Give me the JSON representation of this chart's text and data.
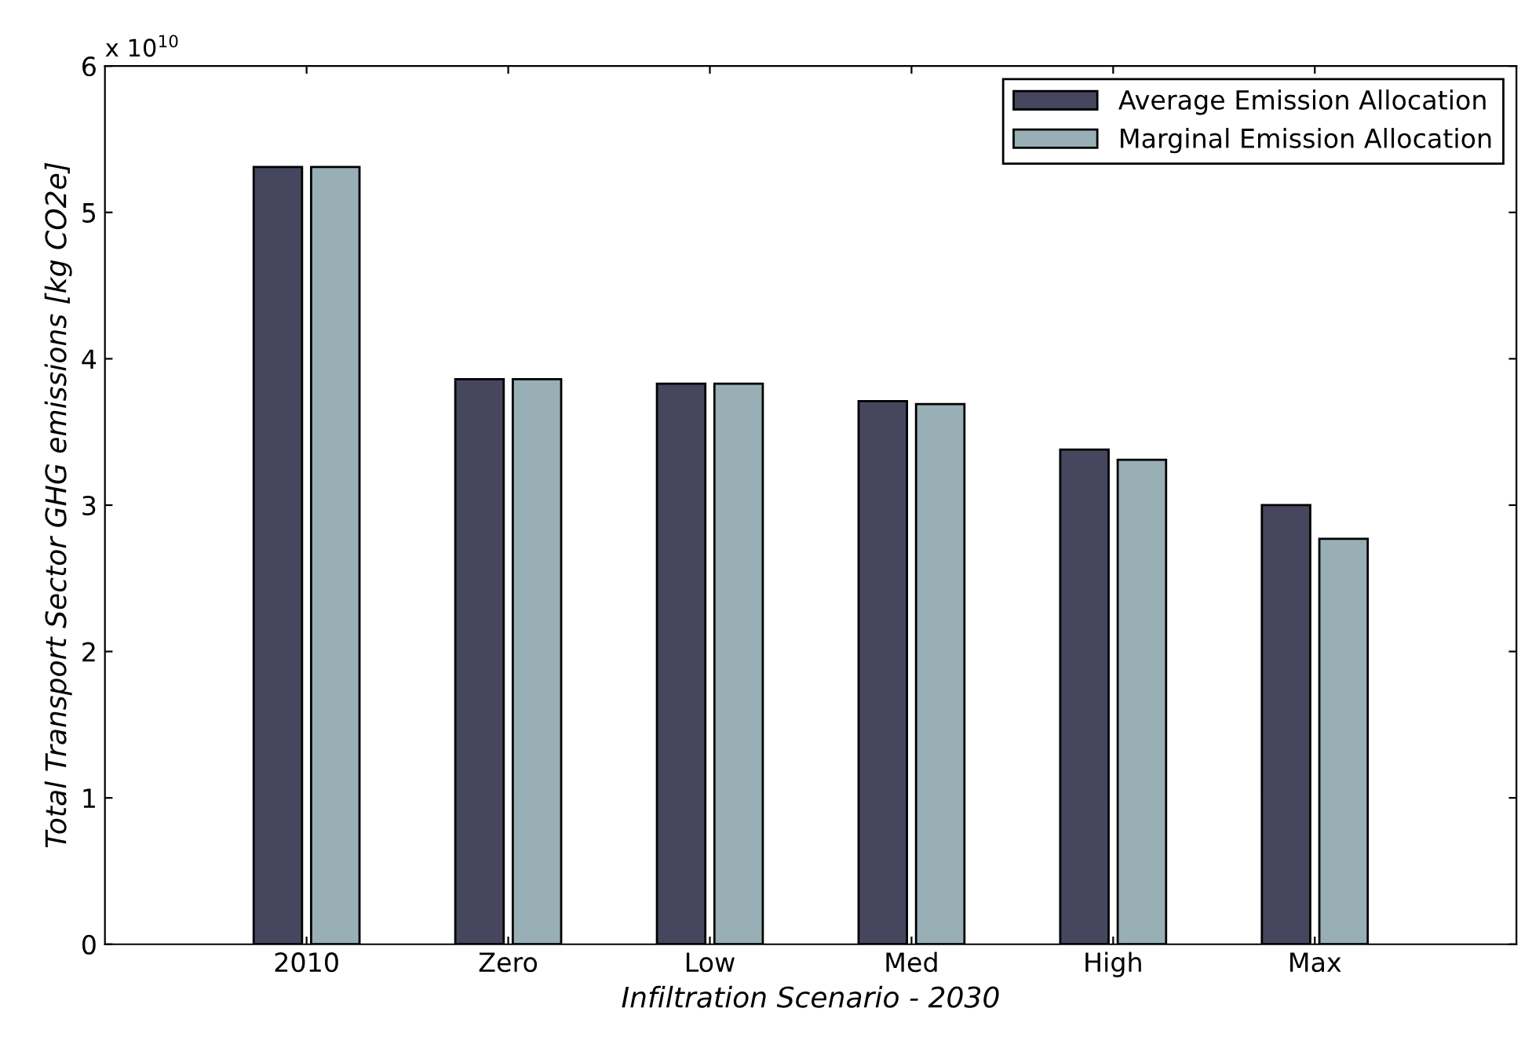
{
  "chart_data": {
    "type": "bar",
    "xlabel": "Infiltration Scenario - 2030",
    "ylabel": "Total Transport Sector GHG emissions [kg CO2e]",
    "categories": [
      "2010",
      "Zero",
      "Low",
      "Med",
      "High",
      "Max"
    ],
    "series": [
      {
        "name": "Average Emission Allocation",
        "color": "#46465f",
        "values": [
          5.31,
          3.86,
          3.83,
          3.71,
          3.38,
          3.0
        ]
      },
      {
        "name": "Marginal Emission Allocation",
        "color": "#97afb5",
        "values": [
          5.31,
          3.86,
          3.83,
          3.69,
          3.31,
          2.77
        ]
      }
    ],
    "ylim": [
      0,
      6
    ],
    "yticks": [
      0,
      1,
      2,
      3,
      4,
      5,
      6
    ],
    "grid": false,
    "legend": "top right",
    "annotations": [
      "x 10$^{10}$"
    ]
  }
}
